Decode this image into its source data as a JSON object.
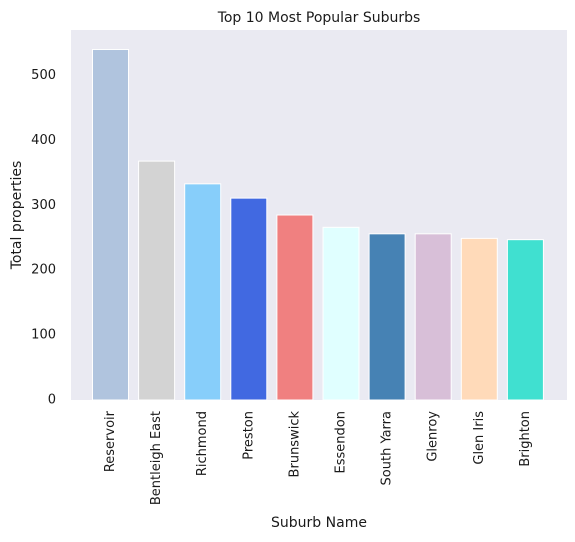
{
  "chart_data": {
    "type": "bar",
    "title": "Top 10 Most Popular Suburbs",
    "xlabel": "Suburb Name",
    "ylabel": "Total properties",
    "categories": [
      "Reservoir",
      "Bentleigh East",
      "Richmond",
      "Preston",
      "Brunswick",
      "Essendon",
      "South Yarra",
      "Glenroy",
      "Glen Iris",
      "Brighton"
    ],
    "values": [
      540,
      368,
      333,
      311,
      285,
      266,
      256,
      256,
      249,
      247
    ],
    "colors": [
      "#b0c4de",
      "#d3d3d3",
      "#87cefa",
      "#4169e1",
      "#f08080",
      "#e0ffff",
      "#4682b4",
      "#d8bfd8",
      "#ffdab9",
      "#40e0d0"
    ],
    "ylim": [
      0,
      570
    ],
    "yticks": [
      0,
      100,
      200,
      300,
      400,
      500
    ],
    "grid": false,
    "legend": "none"
  }
}
